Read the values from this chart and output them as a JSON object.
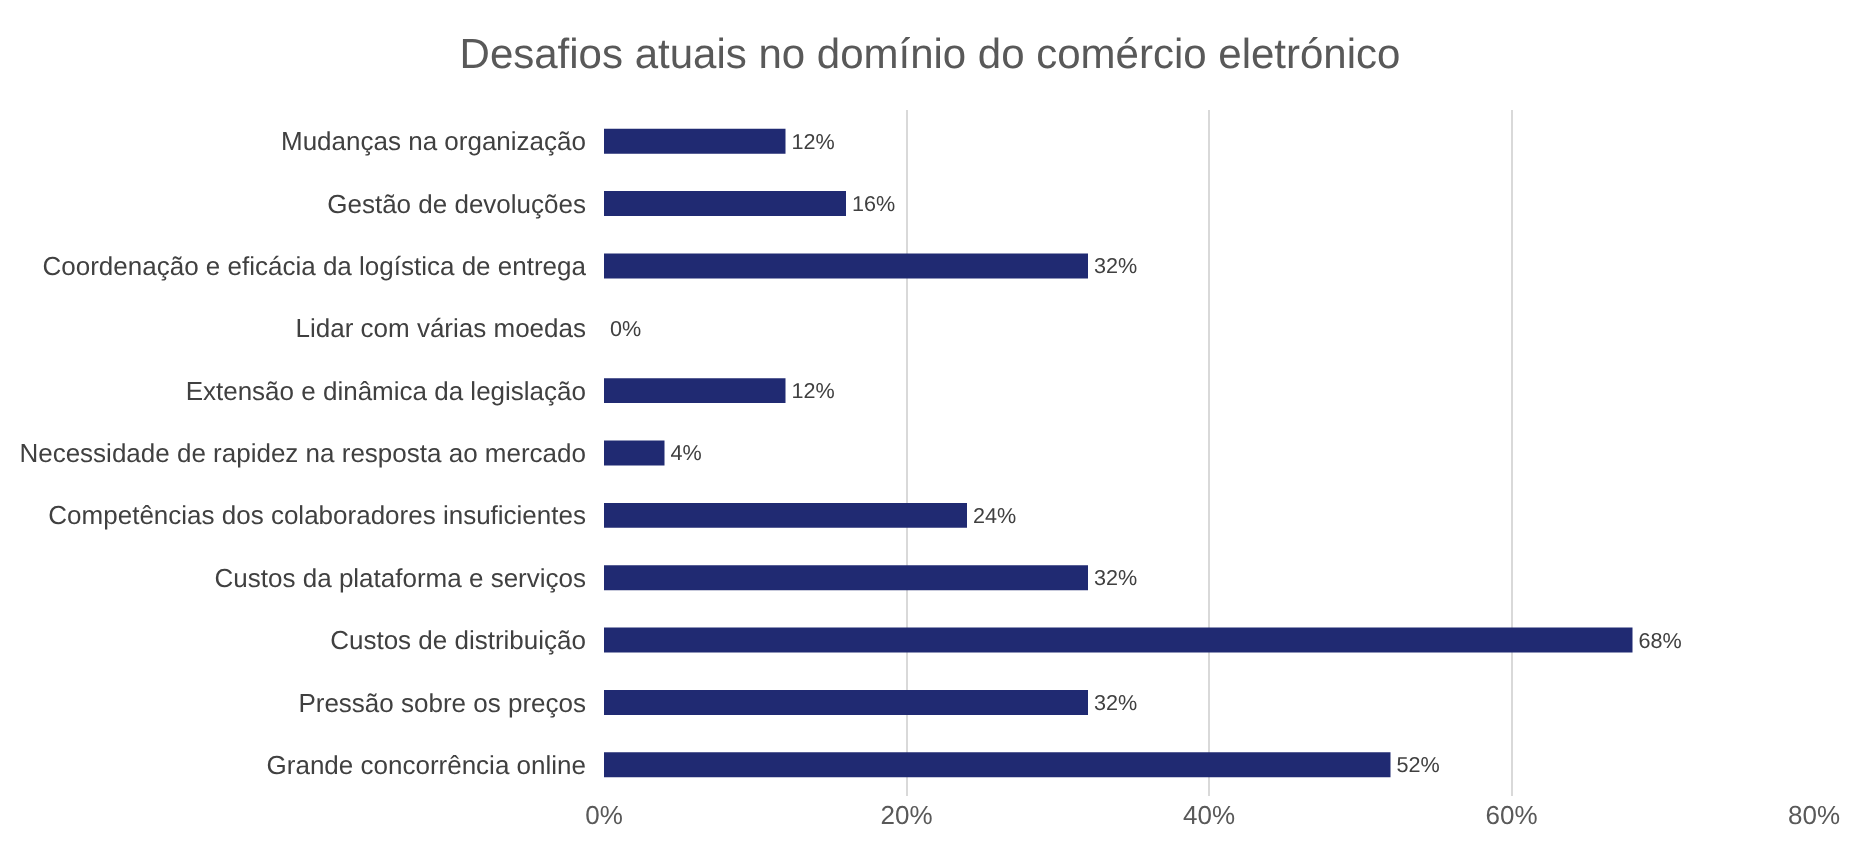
{
  "chart_data": {
    "type": "bar",
    "orientation": "horizontal",
    "title": "Desafios atuais no domínio do comércio eletrónico",
    "categories": [
      "Mudanças na organização",
      "Gestão de devoluções",
      "Coordenação e eficácia da logística de entrega",
      "Lidar com várias moedas",
      "Extensão e dinâmica da legislação",
      "Necessidade de rapidez na resposta ao mercado",
      "Competências dos colaboradores insuficientes",
      "Custos da plataforma e serviços",
      "Custos de distribuição",
      "Pressão sobre os preços",
      "Grande concorrência online"
    ],
    "values": [
      12,
      16,
      32,
      0,
      12,
      4,
      24,
      32,
      68,
      32,
      52
    ],
    "value_labels": [
      "12%",
      "16%",
      "32%",
      "0%",
      "12%",
      "4%",
      "24%",
      "32%",
      "68%",
      "32%",
      "52%"
    ],
    "color": "#202a72",
    "xlim": [
      0,
      80
    ],
    "xticks": [
      {
        "value": 0,
        "label": "0%"
      },
      {
        "value": 20,
        "label": "20%"
      },
      {
        "value": 40,
        "label": "40%"
      },
      {
        "value": 60,
        "label": "60%"
      },
      {
        "value": 80,
        "label": "80%"
      }
    ],
    "grid": "x",
    "legend": false
  }
}
